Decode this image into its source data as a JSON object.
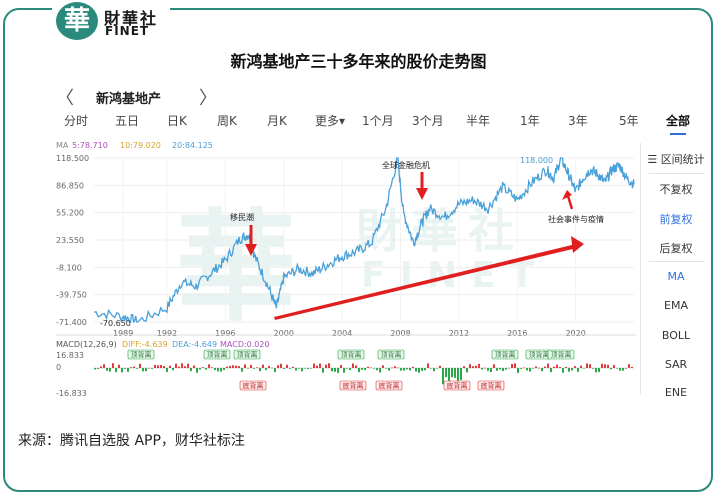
{
  "logo": {
    "badge": "華",
    "cn": "財華社",
    "en": "FINET"
  },
  "title": "新鸿基地产三十多年来的股价走势图",
  "header": {
    "prev": "〈",
    "stock_name": "新鸿基地产",
    "next": "〉"
  },
  "tabs": [
    {
      "label": "分时",
      "active": false
    },
    {
      "label": "五日",
      "active": false
    },
    {
      "label": "日K",
      "active": false
    },
    {
      "label": "周K",
      "active": false
    },
    {
      "label": "月K",
      "active": false
    },
    {
      "label": "更多▾",
      "active": false
    },
    {
      "label": "1个月",
      "active": false
    },
    {
      "label": "3个月",
      "active": false
    },
    {
      "label": "半年",
      "active": false
    },
    {
      "label": "1年",
      "active": false
    },
    {
      "label": "3年",
      "active": false
    },
    {
      "label": "5年",
      "active": false
    },
    {
      "label": "全部",
      "active": true
    }
  ],
  "ma_legend": {
    "label": "MA",
    "ma5": "5:78.710",
    "ma10": "10:79.020",
    "ma20": "20:84.125",
    "colors": {
      "ma5": "#b04fc2",
      "ma10": "#e0b32e",
      "ma20": "#4aa0d8"
    }
  },
  "y_ticks": [
    "118.500",
    "86.850",
    "55.200",
    "23.550",
    "-8.100",
    "-39.750",
    "-71.400"
  ],
  "x_ticks": [
    "1989",
    "1992",
    "1996",
    "2000",
    "2004",
    "2008",
    "2012",
    "2016",
    "2020"
  ],
  "annotations": {
    "low_label": "-70.650",
    "high_label": "118.000",
    "immigration": "移民潮",
    "financial_crisis": "全球金融危机",
    "social_pandemic": "社会事件与疫情"
  },
  "macd_legend": {
    "label": "MACD(12,26,9)",
    "diff": "DIFF:-4.639",
    "dea": "DEA:-4.649",
    "macd": "MACD:0.020"
  },
  "macd_ticks": [
    "16.833",
    "0",
    "-16.833"
  ],
  "macd_tags": {
    "top": "顶背离",
    "bottom": "底背离"
  },
  "side_panel": {
    "icon": "☰",
    "items": [
      "区间统计",
      "不复权",
      "前复权",
      "后复权",
      "MA",
      "EMA",
      "BOLL",
      "SAR",
      "ENE"
    ],
    "selected": [
      "前复权",
      "MA"
    ]
  },
  "watermark": {
    "char": "華",
    "cn": "財華社",
    "en": "FINET"
  },
  "colors": {
    "frame": "#2a8a7b",
    "price_line": "#4aa0d8",
    "annotation_arrow": "#e02020",
    "macd_up": "#e03a3a",
    "macd_down": "#2aa84a"
  },
  "footer": "来源：腾讯自选股 APP，财华社标注",
  "chart_data": {
    "type": "line",
    "series": [
      {
        "x": [
          1987,
          1989,
          1990,
          1992,
          1993,
          1994,
          1995,
          1996,
          1997,
          1997.6,
          1998,
          1998.8,
          1999.5,
          2000,
          2001,
          2002,
          2003,
          2004,
          2005,
          2006,
          2007,
          2007.8,
          2008.2,
          2008.9,
          2009.5,
          2010,
          2011,
          2012,
          2013,
          2014,
          2015,
          2016,
          2017,
          2018,
          2018.5,
          2019,
          2019.5,
          2020,
          2020.5,
          2021,
          2021.5,
          2022,
          2022.5,
          2023,
          2023.5,
          2024
        ],
        "values": [
          -60,
          -65,
          -70.65,
          -55,
          -25,
          -30,
          -15,
          0,
          25,
          30,
          5,
          -25,
          -55,
          -20,
          -10,
          -15,
          -5,
          5,
          10,
          20,
          60,
          118,
          55,
          20,
          45,
          60,
          50,
          65,
          70,
          60,
          85,
          70,
          90,
          105,
          95,
          118,
          100,
          80,
          95,
          105,
          100,
          90,
          105,
          110,
          95,
          88
        ]
      }
    ],
    "ylim": [
      -71.4,
      118.5
    ],
    "xlim": [
      1987,
      2024
    ]
  }
}
